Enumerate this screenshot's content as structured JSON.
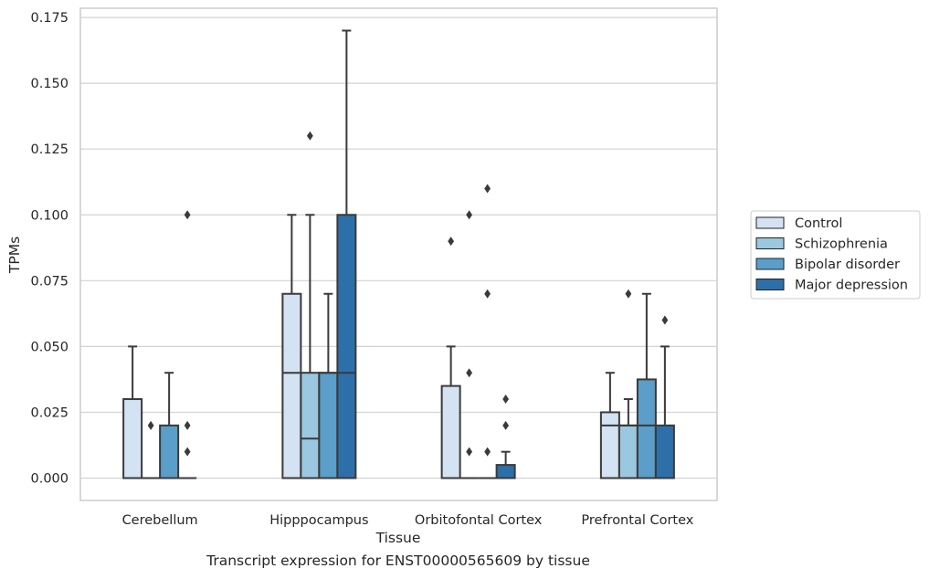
{
  "caption": "Transcript expression for ENST00000565609 by tissue",
  "chart_data": {
    "type": "box",
    "xlabel": "Tissue",
    "ylabel": "TPMs",
    "ylim": [
      -0.0085,
      0.1785
    ],
    "yticks": [
      "0.000",
      "0.025",
      "0.050",
      "0.075",
      "0.100",
      "0.125",
      "0.150",
      "0.175"
    ],
    "categories": [
      "Cerebellum",
      "Hipppocampus",
      "Orbitofontal Cortex",
      "Prefrontal Cortex"
    ],
    "grid": true,
    "legend_position": "right",
    "series": [
      {
        "name": "Control",
        "color": "#d3e3f3",
        "boxes": [
          {
            "q1": 0,
            "median": 0,
            "q3": 0.03,
            "whisker_low": 0,
            "whisker_high": 0.05,
            "outliers": []
          },
          {
            "q1": 0,
            "median": 0.04,
            "q3": 0.07,
            "whisker_low": 0,
            "whisker_high": 0.1,
            "outliers": []
          },
          {
            "q1": 0,
            "median": 0,
            "q3": 0.035,
            "whisker_low": 0,
            "whisker_high": 0.05,
            "outliers": [
              0.09
            ]
          },
          {
            "q1": 0,
            "median": 0.02,
            "q3": 0.025,
            "whisker_low": 0,
            "whisker_high": 0.04,
            "outliers": []
          }
        ]
      },
      {
        "name": "Schizophrenia",
        "color": "#9ac8e0",
        "boxes": [
          {
            "q1": 0,
            "median": 0,
            "q3": 0,
            "whisker_low": 0,
            "whisker_high": 0,
            "outliers": [
              0.02
            ]
          },
          {
            "q1": 0,
            "median": 0.015,
            "q3": 0.04,
            "whisker_low": 0,
            "whisker_high": 0.1,
            "outliers": [
              0.13
            ]
          },
          {
            "q1": 0,
            "median": 0,
            "q3": 0,
            "whisker_low": 0,
            "whisker_high": 0,
            "outliers": [
              0.01,
              0.04,
              0.1
            ]
          },
          {
            "q1": 0,
            "median": 0.02,
            "q3": 0.02,
            "whisker_low": 0,
            "whisker_high": 0.03,
            "outliers": [
              0.07
            ]
          }
        ]
      },
      {
        "name": "Bipolar disorder",
        "color": "#5a9ec9",
        "boxes": [
          {
            "q1": 0,
            "median": 0,
            "q3": 0.02,
            "whisker_low": 0,
            "whisker_high": 0.04,
            "outliers": []
          },
          {
            "q1": 0,
            "median": 0.04,
            "q3": 0.04,
            "whisker_low": 0,
            "whisker_high": 0.07,
            "outliers": []
          },
          {
            "q1": 0,
            "median": 0,
            "q3": 0,
            "whisker_low": 0,
            "whisker_high": 0,
            "outliers": [
              0.01,
              0.07,
              0.11
            ]
          },
          {
            "q1": 0,
            "median": 0.02,
            "q3": 0.0375,
            "whisker_low": 0,
            "whisker_high": 0.07,
            "outliers": []
          }
        ]
      },
      {
        "name": "Major depression",
        "color": "#2d6fa9",
        "boxes": [
          {
            "q1": 0,
            "median": 0,
            "q3": 0,
            "whisker_low": 0,
            "whisker_high": 0,
            "outliers": [
              0.01,
              0.02,
              0.1
            ]
          },
          {
            "q1": 0,
            "median": 0.04,
            "q3": 0.1,
            "whisker_low": 0,
            "whisker_high": 0.17,
            "outliers": []
          },
          {
            "q1": 0,
            "median": 0,
            "q3": 0.005,
            "whisker_low": 0,
            "whisker_high": 0.01,
            "outliers": [
              0.02,
              0.03
            ]
          },
          {
            "q1": 0,
            "median": 0,
            "q3": 0.02,
            "whisker_low": 0,
            "whisker_high": 0.05,
            "outliers": [
              0.06
            ]
          }
        ]
      }
    ]
  }
}
